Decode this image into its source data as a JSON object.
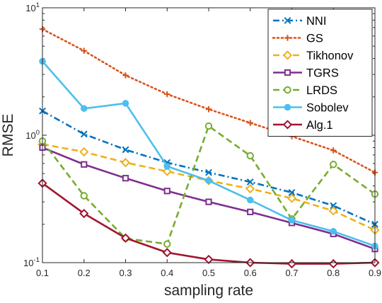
{
  "chart_data": {
    "type": "line",
    "xlabel": "sampling rate",
    "ylabel": "RMSE",
    "y_scale": "log",
    "xlim": [
      0.1,
      0.9
    ],
    "ylim": [
      0.1,
      10
    ],
    "x_ticks": [
      "0.1",
      "0.2",
      "0.3",
      "0.4",
      "0.5",
      "0.6",
      "0.7",
      "0.8",
      "0.9"
    ],
    "y_ticks": [
      {
        "base": "10",
        "exp": "-1"
      },
      {
        "base": "10",
        "exp": "0"
      },
      {
        "base": "10",
        "exp": "1"
      }
    ],
    "x": [
      0.1,
      0.2,
      0.3,
      0.4,
      0.5,
      0.6,
      0.7,
      0.8,
      0.9
    ],
    "legend_position": "top-right",
    "series": [
      {
        "name": "NNI",
        "color": "#0072BD",
        "dash": "dash-dot",
        "marker": "x",
        "values": [
          1.55,
          1.02,
          0.77,
          0.61,
          0.51,
          0.43,
          0.355,
          0.28,
          0.2
        ]
      },
      {
        "name": "GS",
        "color": "#D95319",
        "dash": "dotted",
        "marker": "plus",
        "values": [
          6.8,
          4.6,
          2.95,
          2.1,
          1.6,
          1.25,
          0.98,
          0.76,
          0.51
        ]
      },
      {
        "name": "Tikhonov",
        "color": "#EDB120",
        "dash": "dashed",
        "marker": "diamond",
        "values": [
          0.85,
          0.74,
          0.61,
          0.52,
          0.44,
          0.38,
          0.32,
          0.255,
          0.18
        ]
      },
      {
        "name": "TGRS",
        "color": "#7E2F8E",
        "dash": "solid",
        "marker": "square",
        "values": [
          0.8,
          0.59,
          0.46,
          0.365,
          0.3,
          0.25,
          0.205,
          0.168,
          0.128
        ]
      },
      {
        "name": "LRDS",
        "color": "#77AC30",
        "dash": "dashed",
        "marker": "circle",
        "values": [
          0.9,
          0.335,
          0.155,
          0.14,
          1.18,
          0.69,
          0.22,
          0.59,
          0.345
        ]
      },
      {
        "name": "Sobolev",
        "color": "#4DBEEE",
        "dash": "solid",
        "marker": "filled-circle",
        "values": [
          3.8,
          1.62,
          1.78,
          0.57,
          0.44,
          0.31,
          0.215,
          0.176,
          0.135
        ]
      },
      {
        "name": "Alg.1",
        "color": "#A2142F",
        "dash": "solid",
        "marker": "diamond",
        "values": [
          0.42,
          0.243,
          0.156,
          0.12,
          0.106,
          0.1,
          0.098,
          0.098,
          0.1
        ]
      }
    ]
  }
}
